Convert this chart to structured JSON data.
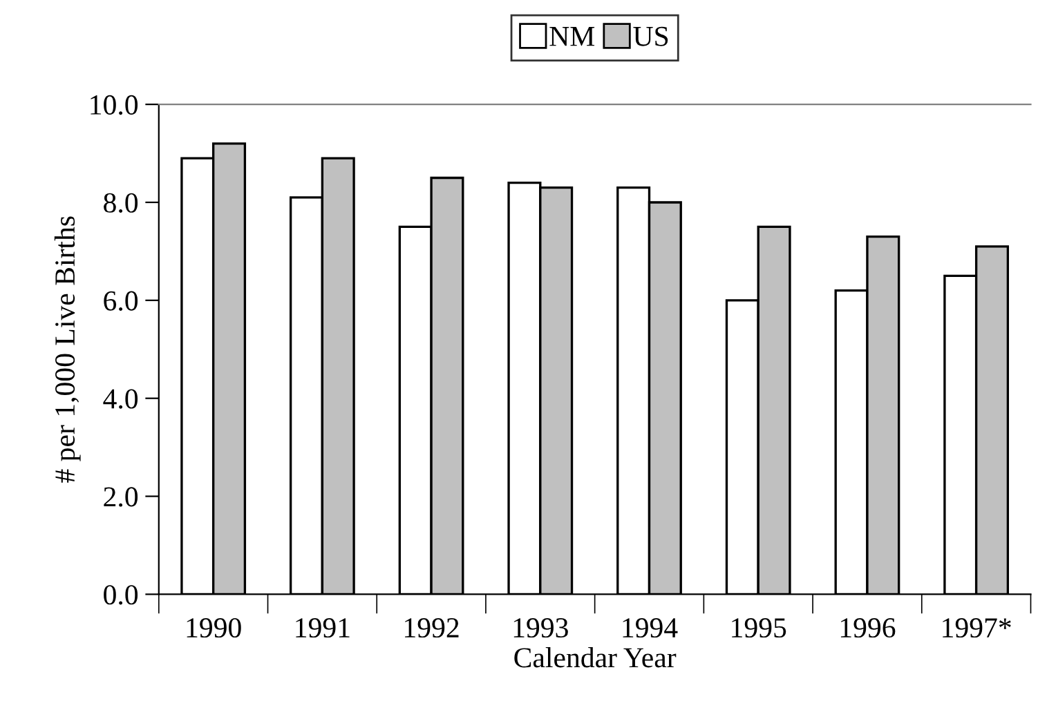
{
  "chart_data": {
    "type": "bar",
    "xlabel": "Calendar Year",
    "ylabel": "# per 1,000 Live Births",
    "categories": [
      "1990",
      "1991",
      "1992",
      "1993",
      "1994",
      "1995",
      "1996",
      "1997*"
    ],
    "series": [
      {
        "name": "NM",
        "color": "#ffffff",
        "values": [
          8.9,
          8.1,
          7.5,
          8.4,
          8.3,
          6.0,
          6.2,
          6.5
        ]
      },
      {
        "name": "US",
        "color": "#c0c0c0",
        "values": [
          9.2,
          8.9,
          8.5,
          8.3,
          8.0,
          7.5,
          7.3,
          7.1
        ]
      }
    ],
    "ylim": [
      0,
      10
    ],
    "yticks": [
      {
        "value": 0,
        "label": "0.0"
      },
      {
        "value": 2,
        "label": "2.0"
      },
      {
        "value": 4,
        "label": "4.0"
      },
      {
        "value": 6,
        "label": "6.0"
      },
      {
        "value": 8,
        "label": "8.0"
      },
      {
        "value": 10,
        "label": "10.0"
      }
    ],
    "grid": false,
    "legend": "top"
  }
}
